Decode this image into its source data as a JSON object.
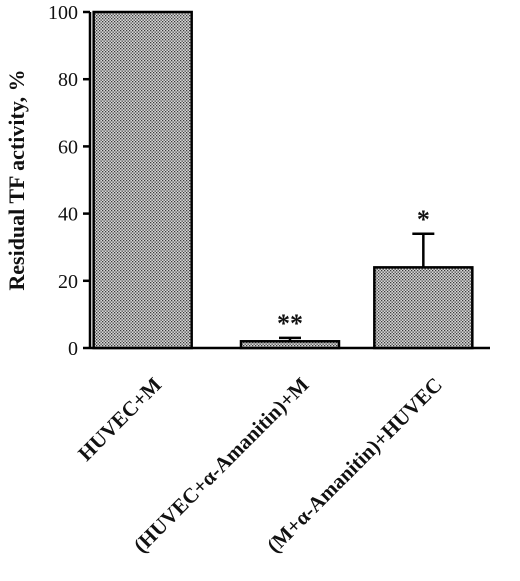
{
  "chart_data": {
    "type": "bar",
    "title": "",
    "xlabel": "",
    "ylabel": "Residual TF activity, %",
    "ylim": [
      0,
      100
    ],
    "yticks": [
      0,
      20,
      40,
      60,
      80,
      100
    ],
    "grid": false,
    "legend": "none",
    "categories": [
      "HUVEC+M",
      "(HUVEC+α-Amanitin)+M",
      "(M+α-Amanitin)+HUVEC"
    ],
    "values": [
      100,
      2,
      24
    ],
    "errors": [
      0,
      1,
      10
    ],
    "significance": [
      "",
      "**",
      "*"
    ]
  },
  "colors": {
    "bar_fill": "#bdbdbd",
    "bar_stroke": "#000000"
  }
}
